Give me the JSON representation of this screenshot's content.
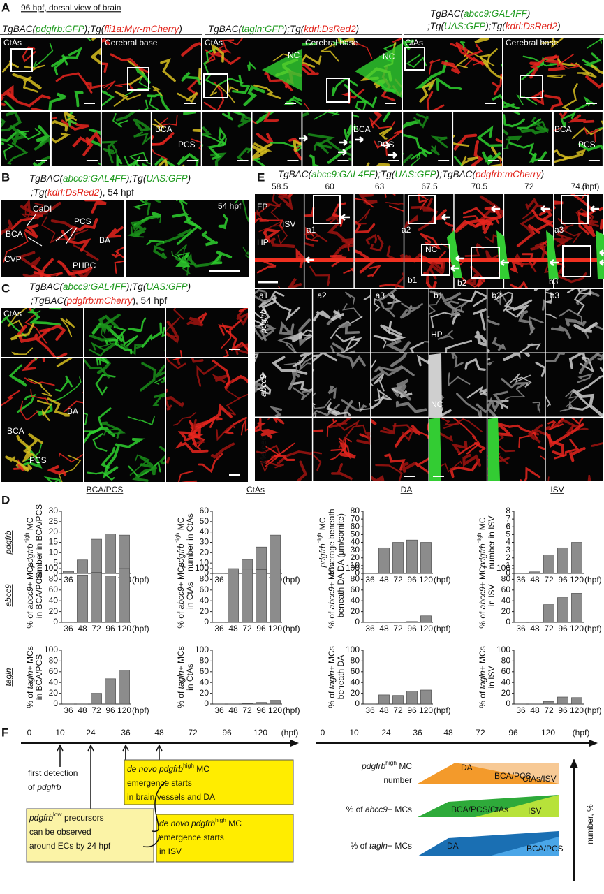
{
  "panel_a": {
    "label": "A",
    "title": "96 hpf, dorsal view of brain",
    "headers": [
      [
        "TgBAC(",
        "pdgfrb:GFP",
        ");Tg(",
        "fli1a:Myr-mCherry",
        ")"
      ],
      [
        "TgBAC(",
        "tagln:GFP",
        ");Tg(",
        "kdrl:DsRed2",
        ")"
      ],
      [
        "TgBAC(",
        "abcc9:GAL4FF",
        ")"
      ],
      [
        ";Tg(",
        "UAS:GFP",
        ");Tg(",
        "kdrl:DsRed2",
        ")"
      ]
    ],
    "labels": [
      "CtAs",
      "Cerebral base",
      "CtAs",
      "NC",
      "Cerebral base",
      "NC",
      "CtAs",
      "Cerebral base",
      "BCA",
      "PCS",
      "BCA",
      "PCS",
      "BCA",
      "PCS"
    ]
  },
  "panel_b": {
    "label": "B",
    "header": [
      [
        "TgBAC(",
        "abcc9:GAL4FF",
        ");Tg(",
        "UAS:GFP",
        ")"
      ],
      [
        ";Tg(",
        "kdrl:DsRed2",
        "), 54 hpf"
      ]
    ],
    "labels": [
      "CaDI",
      "BCA",
      "PCS",
      "BA",
      "CVP",
      "PHBC",
      "54 hpf"
    ]
  },
  "panel_c": {
    "label": "C",
    "header": [
      [
        "TgBAC(",
        "abcc9:GAL4FF",
        ");Tg(",
        "UAS:GFP",
        ")"
      ],
      [
        ";TgBAC(",
        "pdgfrb:mCherry",
        "), 54 hpf"
      ]
    ],
    "labels": [
      "CtAs",
      "BA",
      "BCA",
      "PCS"
    ]
  },
  "panel_e": {
    "label": "E",
    "header": [
      "TgBAC(",
      "abcc9:GAL4FF",
      ");Tg(",
      "UAS:GFP",
      ");TgBAC(",
      "pdgfrb:mCherry",
      ")"
    ],
    "times": [
      "58.5",
      "60",
      "63",
      "67.5",
      "70.5",
      "72",
      "74.5",
      "(hpf)"
    ],
    "labels": [
      "FP",
      "ISV",
      "HP",
      "NC",
      "a1",
      "a2",
      "a3",
      "b1",
      "b2",
      "b3"
    ],
    "columns": [
      "a1",
      "a2",
      "a3",
      "b1",
      "b2",
      "b3"
    ],
    "rows": [
      "pdgfrb",
      "abcc9",
      "Merged"
    ],
    "inset_labels": [
      "HP",
      "NC"
    ]
  },
  "panel_d": {
    "label": "D",
    "columns": [
      "BCA/PCS",
      "CtAs",
      "DA",
      "ISV"
    ],
    "rows": [
      "pdgfrb",
      "abcc9",
      "tagln"
    ]
  },
  "chart_data": [
    {
      "type": "bar",
      "categories": [
        36,
        48,
        72,
        96,
        120
      ],
      "x_unit": "(hpf)",
      "ylabel": [
        [
          "pdgfrb",
          "high",
          " MC"
        ],
        [
          "number in BCA/PCS"
        ]
      ],
      "ylim": [
        0,
        30
      ],
      "yticks": [
        0,
        5,
        10,
        15,
        20,
        25,
        30
      ],
      "values": [
        1,
        6.5,
        16.5,
        19,
        18.5
      ],
      "color": "#8c8c8c"
    },
    {
      "type": "bar",
      "categories": [
        36,
        48,
        72,
        96,
        120
      ],
      "x_unit": "(hpf)",
      "ylabel": [
        [
          "pdgfrb",
          "high",
          " MC"
        ],
        [
          "number in CtAs"
        ]
      ],
      "ylim": [
        0,
        60
      ],
      "yticks": [
        0,
        10,
        20,
        30,
        40,
        50,
        60
      ],
      "values": [
        0,
        3,
        13.5,
        25.5,
        37
      ],
      "color": "#8c8c8c"
    },
    {
      "type": "bar",
      "categories": [
        36,
        48,
        72,
        96,
        120
      ],
      "x_unit": "(hpf)",
      "ylabel": [
        [
          "pdgfrb",
          "high",
          " MC"
        ],
        [
          "coverage beneath"
        ],
        [
          "DA (μm/somite)"
        ]
      ],
      "ylim": [
        0,
        80
      ],
      "yticks": [
        0,
        10,
        20,
        30,
        40,
        50,
        60,
        70,
        80
      ],
      "values": [
        0,
        33,
        40,
        43,
        40
      ],
      "color": "#8c8c8c"
    },
    {
      "type": "bar",
      "categories": [
        36,
        48,
        72,
        96,
        120
      ],
      "x_unit": "(hpf)",
      "ylabel": [
        [
          "pdgfrb",
          "high",
          " MC"
        ],
        [
          "number in ISV"
        ]
      ],
      "ylim": [
        0,
        8
      ],
      "yticks": [
        0,
        1,
        2,
        3,
        4,
        5,
        6,
        7,
        8
      ],
      "values": [
        0,
        0.2,
        2.4,
        3.3,
        4
      ],
      "color": "#8c8c8c"
    },
    {
      "type": "bar",
      "categories": [
        36,
        48,
        72,
        96,
        120
      ],
      "x_unit": "(hpf)",
      "ylabel": [
        [
          "% of ",
          "abcc9",
          "+ MCs"
        ],
        [
          "in BCA/PCS"
        ]
      ],
      "ylim": [
        0,
        100
      ],
      "yticks": [
        0,
        20,
        40,
        60,
        80,
        100
      ],
      "values": [
        0,
        88,
        93,
        86,
        100
      ],
      "color": "#8c8c8c"
    },
    {
      "type": "bar",
      "categories": [
        36,
        48,
        72,
        96,
        120
      ],
      "x_unit": "(hpf)",
      "ylabel": [
        [
          "% of ",
          "abcc9",
          "+ MCs"
        ],
        [
          "in CtAs"
        ]
      ],
      "ylim": [
        0,
        100
      ],
      "yticks": [
        0,
        20,
        40,
        60,
        80,
        100
      ],
      "values": [
        0,
        100,
        99,
        98,
        99.5
      ],
      "color": "#8c8c8c"
    },
    {
      "type": "bar",
      "categories": [
        36,
        48,
        72,
        96,
        120
      ],
      "x_unit": "(hpf)",
      "ylabel": [
        [
          "% of ",
          "abcc9",
          "+ MCs"
        ],
        [
          "beneath DA"
        ]
      ],
      "ylim": [
        0,
        100
      ],
      "yticks": [
        0,
        20,
        40,
        60,
        80,
        100
      ],
      "values": [
        0,
        0,
        0.5,
        1.5,
        12
      ],
      "color": "#8c8c8c"
    },
    {
      "type": "bar",
      "categories": [
        36,
        48,
        72,
        96,
        120
      ],
      "x_unit": "(hpf)",
      "ylabel": [
        [
          "% of ",
          "abcc9",
          "+ MCs"
        ],
        [
          "in ISV"
        ]
      ],
      "ylim": [
        0,
        100
      ],
      "yticks": [
        0,
        20,
        40,
        60,
        80,
        100
      ],
      "values": [
        0,
        0,
        33,
        46,
        54
      ],
      "color": "#8c8c8c"
    },
    {
      "type": "bar",
      "categories": [
        36,
        48,
        72,
        96,
        120
      ],
      "x_unit": "(hpf)",
      "ylabel": [
        [
          "% of ",
          "tagln",
          "+ MCs"
        ],
        [
          "in BCA/PCS"
        ]
      ],
      "ylim": [
        0,
        100
      ],
      "yticks": [
        0,
        20,
        40,
        60,
        80,
        100
      ],
      "values": [
        0,
        0,
        20,
        47,
        63
      ],
      "color": "#8c8c8c"
    },
    {
      "type": "bar",
      "categories": [
        36,
        48,
        72,
        96,
        120
      ],
      "x_unit": "(hpf)",
      "ylabel": [
        [
          "% of ",
          "tagln",
          "+ MCs"
        ],
        [
          "in CtAs"
        ]
      ],
      "ylim": [
        0,
        100
      ],
      "yticks": [
        0,
        20,
        40,
        60,
        80,
        100
      ],
      "values": [
        0,
        0,
        1,
        3,
        7
      ],
      "color": "#8c8c8c"
    },
    {
      "type": "bar",
      "categories": [
        36,
        48,
        72,
        96,
        120
      ],
      "x_unit": "(hpf)",
      "ylabel": [
        [
          "% of ",
          "tagln",
          "+ MCs"
        ],
        [
          "beneath DA"
        ]
      ],
      "ylim": [
        0,
        100
      ],
      "yticks": [
        0,
        20,
        40,
        60,
        80,
        100
      ],
      "values": [
        0,
        17,
        16,
        24,
        26
      ],
      "color": "#8c8c8c"
    },
    {
      "type": "bar",
      "categories": [
        36,
        48,
        72,
        96,
        120
      ],
      "x_unit": "(hpf)",
      "ylabel": [
        [
          "% of ",
          "tagln",
          "+ MCs"
        ],
        [
          "in ISV"
        ]
      ],
      "ylim": [
        0,
        100
      ],
      "yticks": [
        0,
        20,
        40,
        60,
        80,
        100
      ],
      "values": [
        0,
        0,
        5,
        13,
        12
      ],
      "color": "#8c8c8c"
    }
  ],
  "panel_f": {
    "label": "F",
    "ticks": [
      "0",
      "10",
      "24",
      "36",
      "48",
      "72",
      "96",
      "120",
      "(hpf)"
    ],
    "first_detection": [
      [
        "first detection"
      ],
      [
        "of ",
        "pdgfrb"
      ]
    ],
    "box1": [
      [
        "de novo pdgfrb",
        "high",
        " MC"
      ],
      [
        "emergence starts"
      ],
      [
        "in brain vessels and DA"
      ]
    ],
    "box2": [
      [
        "pdgfrb",
        "low",
        " precursors"
      ],
      [
        "can be observed"
      ],
      [
        "around ECs by 24 hpf"
      ]
    ],
    "box3": [
      [
        "de novo pdgfrb",
        "high",
        " MC"
      ],
      [
        "emergence starts"
      ],
      [
        "in ISV"
      ]
    ],
    "rows": [
      [
        [
          "pdgfrb",
          "high",
          " MC"
        ],
        [
          "number"
        ]
      ],
      [
        [
          "% of ",
          "abcc9",
          "+ MCs"
        ]
      ],
      [
        [
          "% of ",
          "tagln",
          "+ MCs"
        ]
      ]
    ],
    "bands": [
      "DA",
      "BCA/PCS",
      "CtAs/ISV",
      "BCA/PCS/CtAs",
      "ISV",
      "DA",
      "BCA/PCS"
    ],
    "axis_label": "number, %"
  }
}
